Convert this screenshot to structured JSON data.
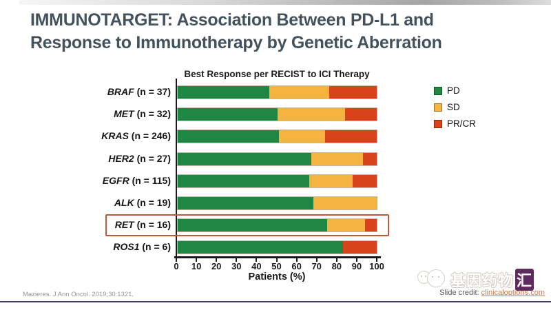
{
  "slide": {
    "title_lines": [
      "IMMUNOTARGET: Association Between PD-L1 and",
      "Response to Immunotherapy by Genetic Aberration"
    ],
    "citation": "Mazieres. J Ann Oncol. 2019;30:1321.",
    "credit_label": "Slide credit: ",
    "credit_link": "clinicaloptions.com",
    "watermark_main": "基因药物",
    "watermark_badge": "汇"
  },
  "chart_data": {
    "type": "bar",
    "orientation": "horizontal",
    "stacked": true,
    "title": "Best Response per RECIST to ICI Therapy",
    "xlabel": "Patients (%)",
    "xlim": [
      0,
      100
    ],
    "xticks": [
      0,
      10,
      20,
      30,
      40,
      50,
      60,
      70,
      80,
      90,
      100
    ],
    "grid": false,
    "legend_position": "top-right",
    "categories": [
      "BRAF (n = 37)",
      "MET (n = 32)",
      "KRAS (n = 246)",
      "HER2 (n = 27)",
      "EGFR (n = 115)",
      "ALK (n = 19)",
      "RET (n = 16)",
      "ROS1 (n = 6)"
    ],
    "category_genes": [
      "BRAF",
      "MET",
      "KRAS",
      "HER2",
      "EGFR",
      "ALK",
      "RET",
      "ROS1"
    ],
    "category_counts": [
      "(n = 37)",
      "(n = 32)",
      "(n = 246)",
      "(n = 27)",
      "(n = 115)",
      "(n = 19)",
      "(n = 16)",
      "(n = 6)"
    ],
    "series": [
      {
        "name": "PD",
        "color": "#1f8743",
        "values": [
          46,
          50,
          51,
          67,
          66,
          68,
          75,
          83
        ]
      },
      {
        "name": "SD",
        "color": "#f5b43f",
        "values": [
          30,
          34,
          23,
          26,
          22,
          32,
          19,
          0
        ]
      },
      {
        "name": "PR/CR",
        "color": "#d8431a",
        "values": [
          24,
          16,
          26,
          7,
          12,
          0,
          6,
          17
        ]
      }
    ],
    "highlighted_category_index": 6,
    "highlight_color": "#bf5a39"
  }
}
